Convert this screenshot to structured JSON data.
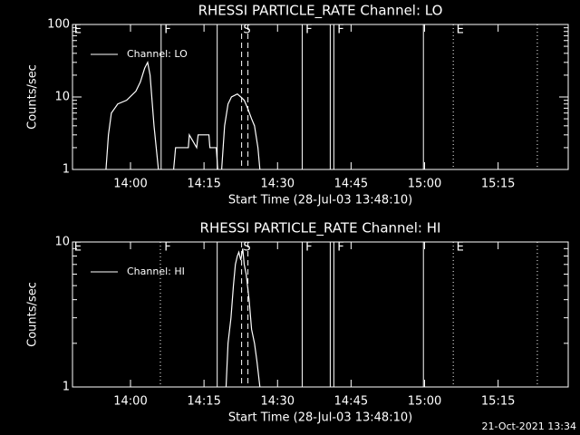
{
  "chart_data": [
    {
      "type": "line",
      "title": "RHESSI PARTICLE_RATE Channel: LO",
      "xlabel": "Start Time (28-Jul-03 13:48:10)",
      "ylabel": "Counts/sec",
      "log_y": true,
      "xlim": [
        828.17,
        929.3
      ],
      "ylim": [
        1,
        100
      ],
      "xticks": [
        {
          "value": 840,
          "label": "14:00"
        },
        {
          "value": 855,
          "label": "14:15"
        },
        {
          "value": 870,
          "label": "14:30"
        },
        {
          "value": 885,
          "label": "14:45"
        },
        {
          "value": 900,
          "label": "15:00"
        },
        {
          "value": 915,
          "label": "15:15"
        }
      ],
      "yticks": [
        1,
        10,
        100
      ],
      "x": [
        835.0,
        835.5,
        836.1,
        837.4,
        839.2,
        841.1,
        842.0,
        842.9,
        843.5,
        844.0,
        844.8,
        845.7,
        847.0,
        848.8,
        849.2,
        851.8,
        852.0,
        853.5,
        853.8,
        856.0,
        856.2,
        857.5,
        857.8,
        858.2,
        858.6,
        859.2,
        859.9,
        860.6,
        861.8,
        862.5,
        863.2,
        863.9,
        864.7,
        865.3,
        866.0,
        866.4
      ],
      "series": [
        {
          "name": "Channel: LO",
          "color": "#ffffff",
          "values": [
            1,
            3,
            6,
            8,
            9,
            12,
            16,
            25,
            30,
            20,
            4,
            1,
            null,
            1,
            2,
            2,
            3,
            2,
            3,
            3,
            2,
            2,
            1,
            null,
            1,
            4,
            8,
            10,
            11,
            10,
            9,
            7,
            5,
            4,
            2,
            1
          ]
        }
      ],
      "flag_lines": [
        {
          "x": 846.25,
          "style": "solid"
        },
        {
          "x": 857.69,
          "style": "solid"
        },
        {
          "x": 862.67,
          "style": "dashed"
        },
        {
          "x": 863.96,
          "style": "dashed"
        },
        {
          "x": 875.03,
          "style": "solid"
        },
        {
          "x": 880.75,
          "style": "solid"
        },
        {
          "x": 881.49,
          "style": "solid"
        },
        {
          "x": 899.76,
          "style": "solid"
        },
        {
          "x": 905.85,
          "style": "dotted"
        },
        {
          "x": 923.0,
          "style": "dotted"
        }
      ],
      "flag_labels": [
        {
          "x": 828.5,
          "label": "E"
        },
        {
          "x": 846.9,
          "label": "F"
        },
        {
          "x": 863.0,
          "label": "S"
        },
        {
          "x": 875.7,
          "label": "F"
        },
        {
          "x": 882.2,
          "label": "F"
        },
        {
          "x": 906.5,
          "label": "E"
        }
      ]
    },
    {
      "type": "line",
      "title": "RHESSI PARTICLE_RATE Channel: HI",
      "xlabel": "Start Time (28-Jul-03 13:48:10)",
      "ylabel": "Counts/sec",
      "log_y": true,
      "xlim": [
        828.17,
        929.3
      ],
      "ylim": [
        1,
        10
      ],
      "xticks": [
        {
          "value": 840,
          "label": "14:00"
        },
        {
          "value": 855,
          "label": "14:15"
        },
        {
          "value": 870,
          "label": "14:30"
        },
        {
          "value": 885,
          "label": "14:45"
        },
        {
          "value": 900,
          "label": "15:00"
        },
        {
          "value": 915,
          "label": "15:15"
        }
      ],
      "yticks": [
        1,
        10
      ],
      "x": [
        859.5,
        859.9,
        860.5,
        861.0,
        861.4,
        861.8,
        862.1,
        862.5,
        862.9,
        863.2,
        863.6,
        864.2,
        864.7,
        865.3,
        865.8,
        866.4
      ],
      "series": [
        {
          "name": "Channel: HI",
          "color": "#ffffff",
          "values": [
            1,
            2,
            3,
            5,
            7,
            8,
            8.5,
            7.5,
            9,
            7,
            6,
            4,
            2.5,
            2,
            1.5,
            1
          ]
        }
      ],
      "flag_lines": [
        {
          "x": 846.1,
          "style": "dotted"
        },
        {
          "x": 857.69,
          "style": "solid"
        },
        {
          "x": 862.67,
          "style": "dashed"
        },
        {
          "x": 863.96,
          "style": "dashed"
        },
        {
          "x": 875.03,
          "style": "solid"
        },
        {
          "x": 880.75,
          "style": "solid"
        },
        {
          "x": 881.49,
          "style": "solid"
        },
        {
          "x": 899.76,
          "style": "solid"
        },
        {
          "x": 905.85,
          "style": "dotted"
        },
        {
          "x": 923.0,
          "style": "dotted"
        }
      ],
      "flag_labels": [
        {
          "x": 828.5,
          "label": "E"
        },
        {
          "x": 846.9,
          "label": "F"
        },
        {
          "x": 863.0,
          "label": "S"
        },
        {
          "x": 875.7,
          "label": "F"
        },
        {
          "x": 882.2,
          "label": "F"
        },
        {
          "x": 906.5,
          "label": "E"
        }
      ]
    }
  ],
  "footer": "21-Oct-2021 13:34"
}
